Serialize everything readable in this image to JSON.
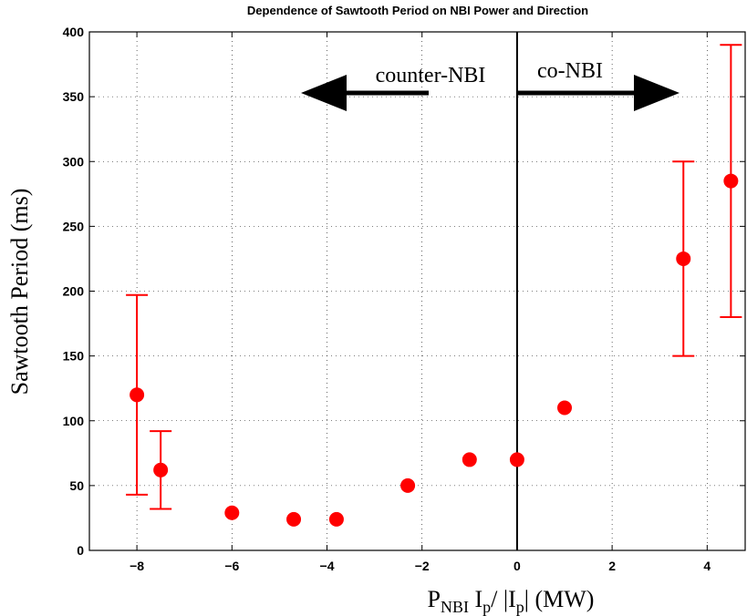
{
  "chart_data": {
    "type": "scatter",
    "title": "Dependence of Sawtooth Period on NBI Power and Direction",
    "x_label": [
      "P",
      "NBI",
      " I",
      "p",
      "/ |I",
      "p",
      "| (MW)"
    ],
    "y_label": "Sawtooth Period (ms)",
    "annotations": [
      "counter-NBI",
      "co-NBI"
    ],
    "x": [
      -8,
      -7.5,
      -6,
      -4.7,
      -3.8,
      -2.3,
      -1,
      0,
      1,
      3.5,
      4.5
    ],
    "values": [
      120,
      62,
      29,
      24,
      24,
      50,
      70,
      70,
      110,
      225,
      285
    ],
    "errors": [
      77,
      30,
      null,
      null,
      null,
      null,
      null,
      null,
      null,
      75,
      105
    ],
    "color": "#ff0000",
    "xlim": [
      -9,
      4.8
    ],
    "ylim": [
      0,
      400
    ],
    "xticks": [
      {
        "value": -8,
        "label": "−8"
      },
      {
        "value": -6,
        "label": "−6"
      },
      {
        "value": -4,
        "label": "−4"
      },
      {
        "value": -2,
        "label": "−2"
      },
      0,
      2,
      4
    ],
    "yticks": [
      0,
      50,
      100,
      150,
      200,
      250,
      300,
      350,
      400
    ],
    "grid": true
  }
}
